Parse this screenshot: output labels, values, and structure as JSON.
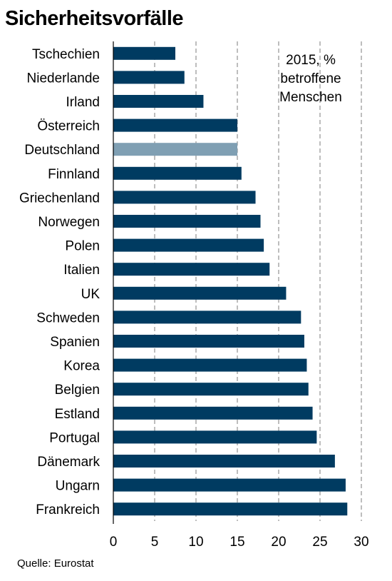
{
  "chart_data": {
    "type": "bar",
    "orientation": "horizontal",
    "title": "Sicherheitsvorfälle",
    "annotation": [
      "2015, %",
      "betroffene",
      "Menschen"
    ],
    "source": "Quelle: Eurostat",
    "categories": [
      "Tschechien",
      "Niederlande",
      "Irland",
      "Österreich",
      "Deutschland",
      "Finnland",
      "Griechenland",
      "Norwegen",
      "Polen",
      "Italien",
      "UK",
      "Schweden",
      "Spanien",
      "Korea",
      "Belgien",
      "Estland",
      "Portugal",
      "Dänemark",
      "Ungarn",
      "Frankreich"
    ],
    "values": [
      7.5,
      8.6,
      10.9,
      15.0,
      15.0,
      15.5,
      17.2,
      17.8,
      18.2,
      18.9,
      20.9,
      22.7,
      23.1,
      23.4,
      23.6,
      24.1,
      24.6,
      26.8,
      28.1,
      28.3
    ],
    "highlight": "Deutschland",
    "xlim": [
      0,
      30
    ],
    "xticks": [
      0,
      5,
      10,
      15,
      20,
      25,
      30
    ],
    "grid": true,
    "colors": {
      "bar": "#003b61",
      "highlight": "#7f9fb3",
      "grid": "#9a9a9a"
    }
  }
}
